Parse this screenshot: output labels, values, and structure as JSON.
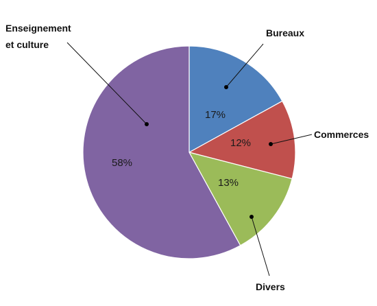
{
  "chart_data": {
    "type": "pie",
    "title": "",
    "slices": [
      {
        "label": "Bureaux",
        "value": 17,
        "display": "17%",
        "color": "#4f81bd"
      },
      {
        "label": "Commerces",
        "value": 12,
        "display": "12%",
        "color": "#c0504d"
      },
      {
        "label": "Divers",
        "value": 13,
        "display": "13%",
        "color": "#9bbb59"
      },
      {
        "label": "Enseignement et culture",
        "label_lines": [
          "Enseignement",
          "et culture"
        ],
        "value": 58,
        "display": "58%",
        "color": "#8064a2"
      }
    ],
    "start": "12 o'clock",
    "direction": "clockwise",
    "legend": "none"
  }
}
